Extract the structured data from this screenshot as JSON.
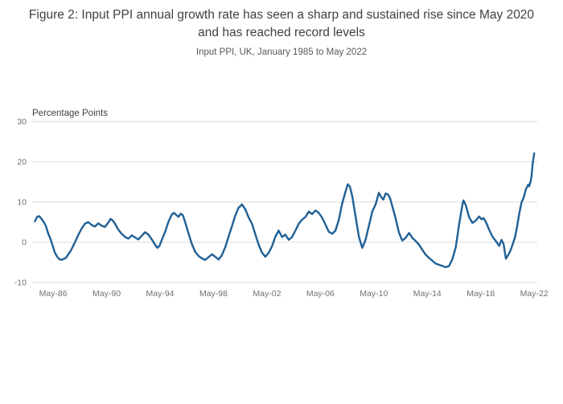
{
  "figure": {
    "title": "Figure 2: Input PPI annual growth rate has seen a sharp and sustained rise since May 2020 and has reached record levels",
    "subtitle": "Input PPI, UK, January 1985 to May 2022"
  },
  "colors": {
    "line": "#206095",
    "grid": "#d9d9d9",
    "tick_label": "#707071",
    "unit_label": "#414042",
    "title": "#414042"
  },
  "chart_data": {
    "type": "line",
    "title": "Figure 2: Input PPI annual growth rate has seen a sharp and sustained rise since May 2020 and has reached record levels",
    "subtitle": "Input PPI, UK, January 1985 to May 2022",
    "unit_label": "Percentage Points",
    "grid": "horizontal",
    "legend": "none",
    "x_axis": {
      "range": [
        1984.8,
        2022.6
      ],
      "ticks": [
        {
          "label": "May-86",
          "value": 1986.37
        },
        {
          "label": "May-90",
          "value": 1990.37
        },
        {
          "label": "May-94",
          "value": 1994.37
        },
        {
          "label": "May-98",
          "value": 1998.37
        },
        {
          "label": "May-02",
          "value": 2002.37
        },
        {
          "label": "May-06",
          "value": 2006.37
        },
        {
          "label": "May-10",
          "value": 2010.37
        },
        {
          "label": "May-14",
          "value": 2014.37
        },
        {
          "label": "May-18",
          "value": 2018.37
        },
        {
          "label": "May-22",
          "value": 2022.37
        }
      ]
    },
    "y_axis": {
      "range": [
        -10,
        30
      ],
      "ticks": [
        {
          "label": "30",
          "value": 30
        },
        {
          "label": "20",
          "value": 20
        },
        {
          "label": "10",
          "value": 10
        },
        {
          "label": "0",
          "value": 0
        },
        {
          "label": "-10",
          "value": -10
        }
      ]
    },
    "series": [
      {
        "name": "Input PPI annual growth rate",
        "color": "#206095",
        "points": [
          [
            1985.0,
            5.2
          ],
          [
            1985.17,
            6.3
          ],
          [
            1985.33,
            6.5
          ],
          [
            1985.5,
            5.8
          ],
          [
            1985.67,
            5.0
          ],
          [
            1985.83,
            4.0
          ],
          [
            1986.0,
            2.2
          ],
          [
            1986.17,
            0.8
          ],
          [
            1986.33,
            -0.8
          ],
          [
            1986.5,
            -2.6
          ],
          [
            1986.67,
            -3.6
          ],
          [
            1986.83,
            -4.2
          ],
          [
            1987.0,
            -4.4
          ],
          [
            1987.17,
            -4.1
          ],
          [
            1987.33,
            -3.9
          ],
          [
            1987.5,
            -3.0
          ],
          [
            1987.67,
            -2.2
          ],
          [
            1987.83,
            -1.2
          ],
          [
            1988.0,
            0.0
          ],
          [
            1988.25,
            1.8
          ],
          [
            1988.5,
            3.4
          ],
          [
            1988.75,
            4.6
          ],
          [
            1989.0,
            5.0
          ],
          [
            1989.25,
            4.3
          ],
          [
            1989.5,
            3.9
          ],
          [
            1989.75,
            4.7
          ],
          [
            1990.0,
            4.1
          ],
          [
            1990.25,
            3.8
          ],
          [
            1990.5,
            4.9
          ],
          [
            1990.67,
            5.8
          ],
          [
            1990.83,
            5.4
          ],
          [
            1991.0,
            4.6
          ],
          [
            1991.25,
            3.1
          ],
          [
            1991.5,
            2.1
          ],
          [
            1991.75,
            1.3
          ],
          [
            1992.0,
            0.9
          ],
          [
            1992.25,
            1.7
          ],
          [
            1992.5,
            1.2
          ],
          [
            1992.75,
            0.7
          ],
          [
            1993.0,
            1.6
          ],
          [
            1993.25,
            2.5
          ],
          [
            1993.5,
            1.9
          ],
          [
            1993.75,
            0.7
          ],
          [
            1994.0,
            -0.6
          ],
          [
            1994.17,
            -1.4
          ],
          [
            1994.33,
            -0.9
          ],
          [
            1994.5,
            0.6
          ],
          [
            1994.75,
            2.6
          ],
          [
            1995.0,
            5.1
          ],
          [
            1995.25,
            6.9
          ],
          [
            1995.42,
            7.3
          ],
          [
            1995.58,
            6.8
          ],
          [
            1995.75,
            6.3
          ],
          [
            1995.92,
            7.1
          ],
          [
            1996.08,
            6.7
          ],
          [
            1996.25,
            5.0
          ],
          [
            1996.5,
            2.2
          ],
          [
            1996.75,
            -0.4
          ],
          [
            1997.0,
            -2.4
          ],
          [
            1997.25,
            -3.4
          ],
          [
            1997.5,
            -4.0
          ],
          [
            1997.75,
            -4.4
          ],
          [
            1998.0,
            -3.7
          ],
          [
            1998.25,
            -3.0
          ],
          [
            1998.5,
            -3.6
          ],
          [
            1998.75,
            -4.3
          ],
          [
            1999.0,
            -3.2
          ],
          [
            1999.25,
            -1.2
          ],
          [
            1999.5,
            1.4
          ],
          [
            1999.75,
            4.0
          ],
          [
            2000.0,
            6.6
          ],
          [
            2000.25,
            8.6
          ],
          [
            2000.5,
            9.4
          ],
          [
            2000.75,
            8.2
          ],
          [
            2001.0,
            6.2
          ],
          [
            2001.25,
            4.6
          ],
          [
            2001.5,
            2.0
          ],
          [
            2001.75,
            -0.6
          ],
          [
            2002.0,
            -2.6
          ],
          [
            2002.25,
            -3.6
          ],
          [
            2002.5,
            -2.6
          ],
          [
            2002.75,
            -1.0
          ],
          [
            2003.0,
            1.4
          ],
          [
            2003.25,
            2.9
          ],
          [
            2003.5,
            1.3
          ],
          [
            2003.75,
            1.9
          ],
          [
            2004.0,
            0.6
          ],
          [
            2004.25,
            1.3
          ],
          [
            2004.5,
            2.9
          ],
          [
            2004.75,
            4.6
          ],
          [
            2005.0,
            5.6
          ],
          [
            2005.25,
            6.3
          ],
          [
            2005.5,
            7.6
          ],
          [
            2005.75,
            7.0
          ],
          [
            2006.0,
            7.9
          ],
          [
            2006.25,
            7.3
          ],
          [
            2006.5,
            6.1
          ],
          [
            2006.75,
            4.4
          ],
          [
            2007.0,
            2.6
          ],
          [
            2007.25,
            2.1
          ],
          [
            2007.5,
            2.9
          ],
          [
            2007.75,
            5.6
          ],
          [
            2008.0,
            9.6
          ],
          [
            2008.25,
            12.6
          ],
          [
            2008.42,
            14.4
          ],
          [
            2008.58,
            13.8
          ],
          [
            2008.75,
            11.5
          ],
          [
            2009.0,
            6.4
          ],
          [
            2009.25,
            1.4
          ],
          [
            2009.5,
            -1.4
          ],
          [
            2009.75,
            0.6
          ],
          [
            2010.0,
            4.1
          ],
          [
            2010.25,
            7.6
          ],
          [
            2010.5,
            9.4
          ],
          [
            2010.75,
            12.3
          ],
          [
            2010.92,
            11.2
          ],
          [
            2011.08,
            10.6
          ],
          [
            2011.25,
            12.1
          ],
          [
            2011.42,
            11.9
          ],
          [
            2011.58,
            11.0
          ],
          [
            2011.75,
            9.0
          ],
          [
            2012.0,
            5.9
          ],
          [
            2012.25,
            2.4
          ],
          [
            2012.5,
            0.4
          ],
          [
            2012.75,
            1.1
          ],
          [
            2013.0,
            2.3
          ],
          [
            2013.25,
            1.1
          ],
          [
            2013.5,
            0.3
          ],
          [
            2013.75,
            -0.6
          ],
          [
            2014.0,
            -1.9
          ],
          [
            2014.25,
            -3.1
          ],
          [
            2014.5,
            -3.9
          ],
          [
            2014.75,
            -4.6
          ],
          [
            2015.0,
            -5.3
          ],
          [
            2015.25,
            -5.6
          ],
          [
            2015.5,
            -5.9
          ],
          [
            2015.75,
            -6.2
          ],
          [
            2016.0,
            -5.9
          ],
          [
            2016.25,
            -4.2
          ],
          [
            2016.5,
            -1.2
          ],
          [
            2016.75,
            4.4
          ],
          [
            2017.0,
            9.4
          ],
          [
            2017.08,
            10.4
          ],
          [
            2017.25,
            9.2
          ],
          [
            2017.5,
            6.2
          ],
          [
            2017.75,
            4.8
          ],
          [
            2018.0,
            5.4
          ],
          [
            2018.25,
            6.4
          ],
          [
            2018.42,
            5.7
          ],
          [
            2018.58,
            6.0
          ],
          [
            2018.75,
            5.1
          ],
          [
            2019.0,
            3.1
          ],
          [
            2019.25,
            1.4
          ],
          [
            2019.5,
            0.3
          ],
          [
            2019.75,
            -0.9
          ],
          [
            2019.92,
            0.6
          ],
          [
            2020.08,
            -0.4
          ],
          [
            2020.25,
            -4.1
          ],
          [
            2020.42,
            -3.2
          ],
          [
            2020.58,
            -2.2
          ],
          [
            2020.75,
            -0.6
          ],
          [
            2020.92,
            1.1
          ],
          [
            2021.08,
            3.6
          ],
          [
            2021.25,
            7.1
          ],
          [
            2021.42,
            9.9
          ],
          [
            2021.58,
            11.1
          ],
          [
            2021.75,
            13.2
          ],
          [
            2021.92,
            14.3
          ],
          [
            2022.0,
            13.9
          ],
          [
            2022.08,
            14.9
          ],
          [
            2022.17,
            16.4
          ],
          [
            2022.25,
            19.4
          ],
          [
            2022.37,
            22.1
          ]
        ]
      }
    ]
  }
}
